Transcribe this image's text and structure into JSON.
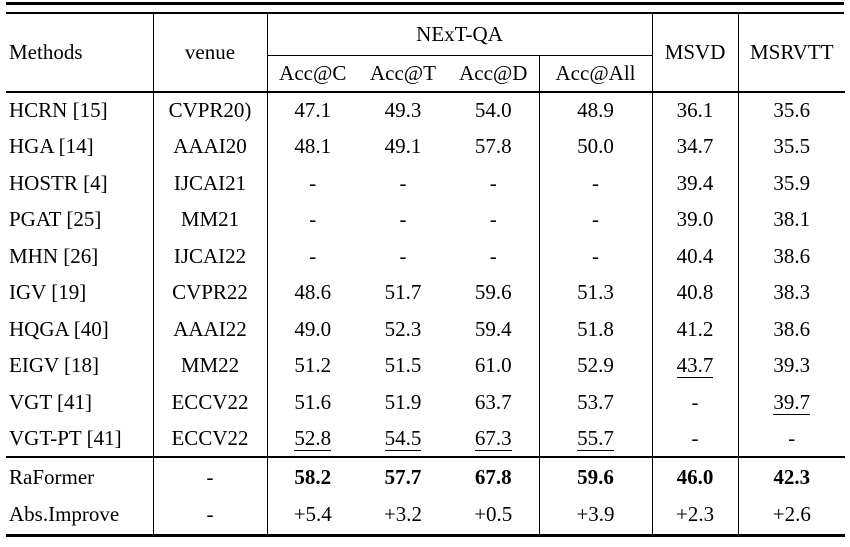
{
  "table": {
    "header": {
      "methods": "Methods",
      "venue": "venue",
      "group": "NExT-QA",
      "subcols": [
        "Acc@C",
        "Acc@T",
        "Acc@D",
        "Acc@All"
      ],
      "msvd": "MSVD",
      "msrvtt": "MSRVTT"
    },
    "rows": [
      {
        "method": "HCRN [15]",
        "venue": "CVPR20)",
        "cells": [
          "47.1",
          "49.3",
          "54.0",
          "48.9",
          "36.1",
          "35.6"
        ]
      },
      {
        "method": "HGA [14]",
        "venue": "AAAI20",
        "cells": [
          "48.1",
          "49.1",
          "57.8",
          "50.0",
          "34.7",
          "35.5"
        ]
      },
      {
        "method": "HOSTR [4]",
        "venue": "IJCAI21",
        "cells": [
          "-",
          "-",
          "-",
          "-",
          "39.4",
          "35.9"
        ]
      },
      {
        "method": "PGAT [25]",
        "venue": "MM21",
        "cells": [
          "-",
          "-",
          "-",
          "-",
          "39.0",
          "38.1"
        ]
      },
      {
        "method": "MHN [26]",
        "venue": "IJCAI22",
        "cells": [
          "-",
          "-",
          "-",
          "-",
          "40.4",
          "38.6"
        ]
      },
      {
        "method": "IGV [19]",
        "venue": "CVPR22",
        "cells": [
          "48.6",
          "51.7",
          "59.6",
          "51.3",
          "40.8",
          "38.3"
        ]
      },
      {
        "method": "HQGA [40]",
        "venue": "AAAI22",
        "cells": [
          "49.0",
          "52.3",
          "59.4",
          "51.8",
          "41.2",
          "38.6"
        ]
      },
      {
        "method": "EIGV [18]",
        "venue": "MM22",
        "cells": [
          "51.2",
          "51.5",
          "61.0",
          "52.9",
          "43.7",
          "39.3"
        ],
        "underline": [
          4
        ]
      },
      {
        "method": "VGT [41]",
        "venue": "ECCV22",
        "cells": [
          "51.6",
          "51.9",
          "63.7",
          "53.7",
          "-",
          "39.7"
        ],
        "underline": [
          5
        ]
      },
      {
        "method": "VGT-PT [41]",
        "venue": "ECCV22",
        "cells": [
          "52.8",
          "54.5",
          "67.3",
          "55.7",
          "-",
          "-"
        ],
        "underline": [
          0,
          1,
          2,
          3
        ]
      }
    ],
    "footer_rows": [
      {
        "method": "RaFormer",
        "venue": "-",
        "cells": [
          "58.2",
          "57.7",
          "67.8",
          "59.6",
          "46.0",
          "42.3"
        ],
        "bold": [
          0,
          1,
          2,
          3,
          4,
          5
        ]
      },
      {
        "method": "Abs.Improve",
        "venue": "-",
        "cells": [
          "+5.4",
          "+3.2",
          "+0.5",
          "+3.9",
          "+2.3",
          "+2.6"
        ]
      }
    ]
  }
}
